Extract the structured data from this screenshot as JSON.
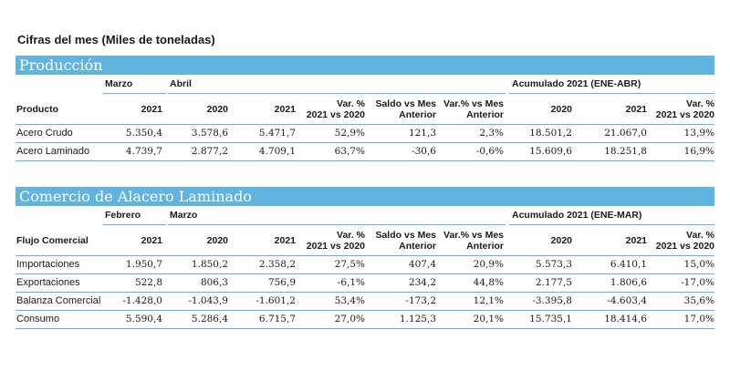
{
  "title": "Cifras del mes (Miles de toneladas)",
  "sections": [
    {
      "name": "Producción",
      "groups": [
        "Marzo",
        "Abril",
        "Acumulado 2021 (ENE-ABR)"
      ],
      "columns": [
        "Producto",
        "2021",
        "2020",
        "2021",
        "Var. %\n2021 vs 2020",
        "Saldo vs Mes\nAnterior",
        "Var.% vs Mes\nAnterior",
        "2020",
        "2021",
        "Var. %\n2021 vs 2020"
      ],
      "rows": [
        [
          "Acero Crudo",
          "5.350,4",
          "3.578,6",
          "5.471,7",
          "52,9%",
          "121,3",
          "2,3%",
          "18.501,2",
          "21.067,0",
          "13,9%"
        ],
        [
          "Acero Laminado",
          "4.739,7",
          "2.877,2",
          "4.709,1",
          "63,7%",
          "-30,6",
          "-0,6%",
          "15.609,6",
          "18.251,8",
          "16,9%"
        ]
      ]
    },
    {
      "name": "Comercio de Alacero Laminado",
      "groups": [
        "Febrero",
        "Marzo",
        "Acumulado 2021 (ENE-MAR)"
      ],
      "columns": [
        "Flujo Comercial",
        "2021",
        "2020",
        "2021",
        "Var. %\n2021 vs 2020",
        "Saldo vs Mes\nAnterior",
        "Var.% vs Mes\nAnterior",
        "2020",
        "2021",
        "Var. %\n2021 vs 2020"
      ],
      "rows": [
        [
          "Importaciones",
          "1.950,7",
          "1.850,2",
          "2.358,2",
          "27,5%",
          "407,4",
          "20,9%",
          "5.573,3",
          "6.410,1",
          "15,0%"
        ],
        [
          "Exportaciones",
          "522,8",
          "806,3",
          "756,9",
          "-6,1%",
          "234,2",
          "44,8%",
          "2.177,5",
          "1.806,6",
          "-17,0%"
        ],
        [
          "Balanza Comercial",
          "-1.428,0",
          "-1.043,9",
          "-1.601,2",
          "53,4%",
          "-173,2",
          "12,1%",
          "-3.395,8",
          "-4.603,4",
          "35,6%"
        ],
        [
          "Consumo",
          "5.590,4",
          "5.286,4",
          "6.715,7",
          "27,0%",
          "1.125,3",
          "20,1%",
          "15.735,1",
          "18.414,6",
          "17,0%"
        ]
      ]
    }
  ]
}
